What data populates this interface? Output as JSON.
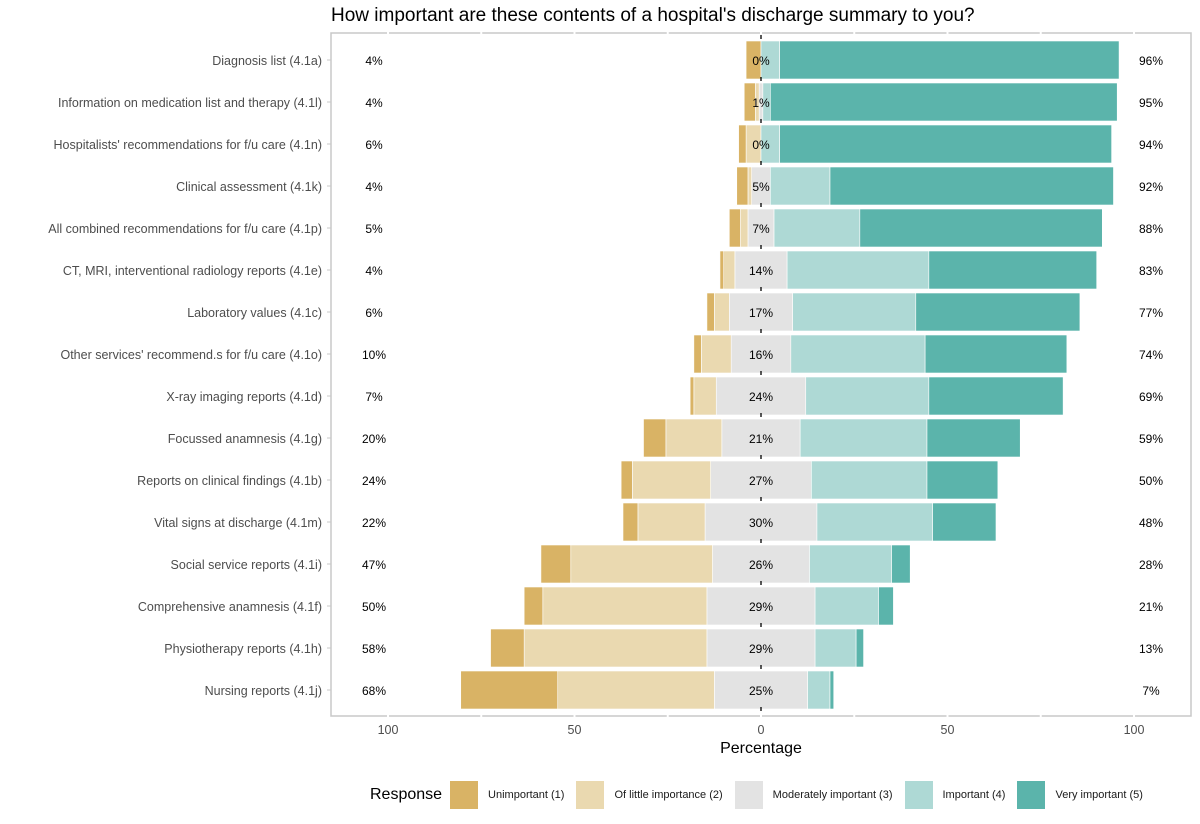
{
  "chart_data": {
    "type": "bar",
    "subtype": "diverging-stacked-horizontal",
    "title": "How important are these contents of a hospital's discharge summary to you?",
    "xlabel": "Percentage",
    "ylabel": "",
    "xlim": [
      -100,
      100
    ],
    "x_ticks": [
      -100,
      -50,
      0,
      50,
      100
    ],
    "x_tick_labels": [
      "100",
      "50",
      "0",
      "50",
      "100"
    ],
    "legend_title": "Response",
    "legend_position": "bottom",
    "categories": [
      "Diagnosis list (4.1a)",
      "Information on medication list and therapy (4.1l)",
      "Hospitalists' recommendations for f/u care (4.1n)",
      "Clinical assessment (4.1k)",
      "All combined recommendations for f/u care (4.1p)",
      "CT, MRI, interventional radiology reports (4.1e)",
      "Laboratory values (4.1c)",
      "Other services' recommend.s for f/u care (4.1o)",
      "X-ray imaging reports (4.1d)",
      "Focussed anamnesis (4.1g)",
      "Reports on clinical findings (4.1b)",
      "Vital signs at discharge (4.1m)",
      "Social service reports (4.1i)",
      "Comprehensive anamnesis (4.1f)",
      "Physiotherapy reports (4.1h)",
      "Nursing reports (4.1j)"
    ],
    "series": [
      {
        "name": "Unimportant (1)",
        "color": "#D9B365",
        "values": [
          4,
          3,
          2,
          3,
          3,
          1,
          2,
          2,
          1,
          6,
          3,
          4,
          8,
          5,
          9,
          26
        ]
      },
      {
        "name": "Of little importance (2)",
        "color": "#EAD9B0",
        "values": [
          0,
          1,
          4,
          1,
          2,
          3,
          4,
          8,
          6,
          15,
          21,
          18,
          38,
          44,
          49,
          42
        ]
      },
      {
        "name": "Moderately important (3)",
        "color": "#E3E3E3",
        "values": [
          0,
          1,
          0,
          5,
          7,
          14,
          17,
          16,
          24,
          21,
          27,
          30,
          26,
          29,
          29,
          25
        ]
      },
      {
        "name": "Important (4)",
        "color": "#AED9D5",
        "values": [
          5,
          2,
          5,
          16,
          23,
          38,
          33,
          36,
          33,
          34,
          31,
          31,
          22,
          17,
          11,
          6
        ]
      },
      {
        "name": "Very important (5)",
        "color": "#5BB4AB",
        "values": [
          91,
          93,
          89,
          76,
          65,
          45,
          44,
          38,
          36,
          25,
          19,
          17,
          5,
          4,
          2,
          1
        ]
      }
    ],
    "label_left": [
      "4%",
      "4%",
      "6%",
      "4%",
      "5%",
      "4%",
      "6%",
      "10%",
      "7%",
      "20%",
      "24%",
      "22%",
      "47%",
      "50%",
      "58%",
      "68%"
    ],
    "label_center": [
      "0%",
      "1%",
      "0%",
      "5%",
      "7%",
      "14%",
      "17%",
      "16%",
      "24%",
      "21%",
      "27%",
      "30%",
      "26%",
      "29%",
      "29%",
      "25%"
    ],
    "label_right": [
      "96%",
      "95%",
      "94%",
      "92%",
      "88%",
      "83%",
      "77%",
      "74%",
      "69%",
      "59%",
      "50%",
      "48%",
      "28%",
      "21%",
      "13%",
      "7%"
    ]
  }
}
